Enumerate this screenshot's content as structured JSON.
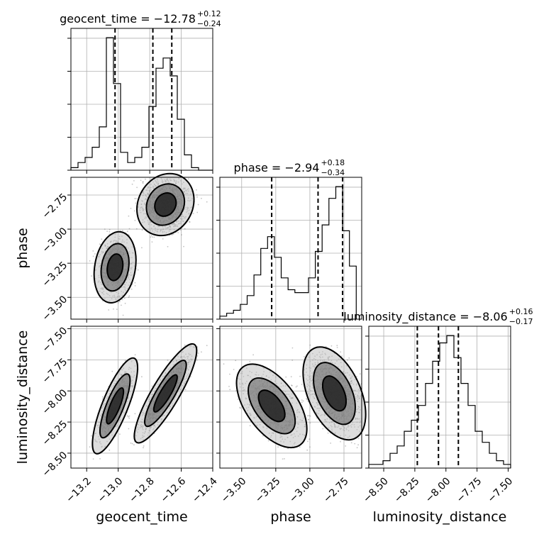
{
  "chart_data": {
    "type": "corner",
    "grid": true,
    "colors": {
      "line": "#000000",
      "grid": "#b0b0b0",
      "points": "#555555",
      "fill_dark": "#222222",
      "fill_mid": "#777777",
      "fill_light": "#bbbbbb"
    },
    "parameters": [
      {
        "name": "geocent_time",
        "axis_label": "geocent_time",
        "title_lhs": "geocent_time = −12.78",
        "title_plus": "+0.12",
        "title_minus": "−0.24",
        "median": -12.78,
        "q_low": -13.02,
        "q_high": -12.66,
        "range": [
          -13.3,
          -12.4
        ],
        "ticks": [
          -13.2,
          -13.0,
          -12.8,
          -12.6,
          -12.4
        ],
        "tick_labels": [
          "−13.2",
          "−13.0",
          "−12.8",
          "−12.6",
          "−12.4"
        ],
        "hist_counts": [
          1,
          3,
          5,
          9,
          17,
          52,
          34,
          7,
          3,
          5,
          9,
          25,
          40,
          44,
          37,
          20,
          6,
          1,
          0,
          0
        ]
      },
      {
        "name": "phase",
        "axis_label": "phase",
        "title_lhs": "phase = −2.94",
        "title_plus": "+0.18",
        "title_minus": "−0.34",
        "median": -2.94,
        "q_low": -3.28,
        "q_high": -2.76,
        "range": [
          -3.66,
          -2.62
        ],
        "hist_range": [
          -3.66,
          -2.66
        ],
        "ticks": [
          -3.5,
          -3.25,
          -3.0,
          -2.75
        ],
        "tick_labels": [
          "−3.50",
          "−3.25",
          "−3.00",
          "−2.75"
        ],
        "hist_counts": [
          1,
          2,
          3,
          5,
          8,
          15,
          24,
          28,
          21,
          14,
          10,
          9,
          9,
          14,
          23,
          32,
          41,
          45,
          30,
          18
        ]
      },
      {
        "name": "luminosity_distance",
        "axis_label": "luminosity_distance",
        "title_lhs": "luminosity_distance = −8.06",
        "title_plus": "+0.16",
        "title_minus": "−0.17",
        "median": -8.06,
        "q_low": -8.23,
        "q_high": -7.9,
        "range": [
          -8.62,
          -7.48
        ],
        "ticks": [
          -8.5,
          -8.25,
          -8.0,
          -7.75,
          -7.5
        ],
        "tick_labels": [
          "−8.50",
          "−8.25",
          "−8.00",
          "−7.75",
          "−7.50"
        ],
        "hist_counts": [
          1,
          1,
          2,
          4,
          6,
          10,
          13,
          17,
          23,
          29,
          34,
          36,
          30,
          23,
          17,
          10,
          7,
          4,
          2,
          1
        ]
      }
    ]
  }
}
